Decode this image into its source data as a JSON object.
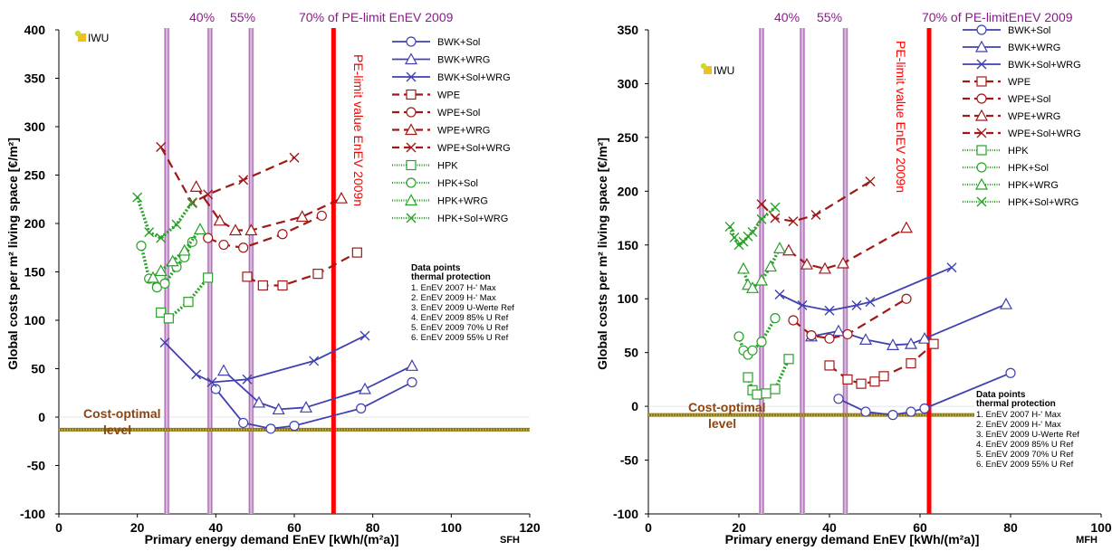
{
  "legend_entries": [
    "BWK+Sol",
    "BWK+WRG",
    "BWK+Sol+WRG",
    "WPE",
    "WPE+Sol",
    "WPE+WRG",
    "WPE+Sol+WRG",
    "HPK",
    "HPK+Sol",
    "HPK+WRG",
    "HPK+Sol+WRG"
  ],
  "chart_data": [
    {
      "type": "line",
      "xlabel": "Primary energy demand EnEV [kWh/(m²a)]",
      "ylabel": "Global costs per m² living space [€/m²]",
      "xlim": [
        0,
        120
      ],
      "ylim": [
        -100,
        400
      ],
      "xticks": [
        0,
        20,
        40,
        60,
        80,
        100,
        120
      ],
      "yticks": [
        -100,
        -50,
        0,
        50,
        100,
        150,
        200,
        250,
        300,
        350,
        400
      ],
      "grid": "off",
      "legend": "right",
      "top_labels": [
        "40%",
        "55%",
        "70% of PE-limit EnEV 2009"
      ],
      "limit_label": "PE-limit value EnEV 2009n",
      "cost_optimal_label": [
        "Cost-optimal",
        "level"
      ],
      "corner_label": "SFH",
      "logo_text": "IWU",
      "datapoints_title": [
        "Data points",
        "thermal protection"
      ],
      "datapoints_items": [
        "1. EnEV 2007 H-' Max",
        "2. EnEV 2009 H-' Max",
        "3. EnEV 2009 U-Werte Ref",
        "4. EnEV 2009 85% U Ref",
        "5. EnEV 2009 70% U Ref",
        "6. EnEV 2009 55% U Ref"
      ],
      "vlines_purple": [
        27.5,
        38.5,
        49
      ],
      "vline_red": 70,
      "cost_optimal_y": -13,
      "series": [
        {
          "name": "BWK+Sol",
          "x": [
            40,
            47,
            54,
            60,
            77,
            90
          ],
          "y": [
            29,
            -6,
            -12,
            -9,
            9,
            36
          ]
        },
        {
          "name": "BWK+WRG",
          "x": [
            42,
            51,
            56,
            63,
            78,
            90
          ],
          "y": [
            48,
            15,
            8,
            10,
            29,
            53
          ]
        },
        {
          "name": "BWK+Sol+WRG",
          "x": [
            27,
            35,
            39,
            48,
            65,
            78
          ],
          "y": [
            77,
            44,
            36,
            39,
            58,
            84
          ]
        },
        {
          "name": "WPE",
          "x": [
            48,
            52,
            57,
            66,
            76
          ],
          "y": [
            145,
            136,
            136,
            148,
            170
          ]
        },
        {
          "name": "WPE+Sol",
          "x": [
            38,
            42,
            47,
            57,
            67
          ],
          "y": [
            185,
            178,
            175,
            189,
            208
          ]
        },
        {
          "name": "WPE+WRG",
          "x": [
            35,
            41,
            45,
            49,
            62,
            72
          ],
          "y": [
            238,
            203,
            193,
            193,
            207,
            226
          ]
        },
        {
          "name": "WPE+Sol+WRG",
          "x": [
            26,
            34,
            38,
            47,
            60
          ],
          "y": [
            279,
            221,
            230,
            245,
            268
          ]
        },
        {
          "name": "HPK",
          "x": [
            26,
            28,
            33,
            38
          ],
          "y": [
            108,
            102,
            119,
            144
          ]
        },
        {
          "name": "HPK+Sol",
          "x": [
            21,
            23,
            25,
            27,
            30,
            32,
            34
          ],
          "y": [
            177,
            143,
            134,
            138,
            155,
            165,
            181
          ]
        },
        {
          "name": "HPK+WRG",
          "x": [
            24,
            26,
            29,
            32,
            36
          ],
          "y": [
            144,
            151,
            161,
            172,
            194
          ]
        },
        {
          "name": "HPK+Sol+WRG",
          "x": [
            20,
            23,
            26,
            30,
            34
          ],
          "y": [
            227,
            191,
            185,
            199,
            222
          ]
        }
      ]
    },
    {
      "type": "line",
      "xlabel": "Primary energy demand EnEV [kWh/(m²a)]",
      "ylabel": "Global costs per m² living space [€/m²]",
      "xlim": [
        0,
        100
      ],
      "ylim": [
        -100,
        350
      ],
      "xticks": [
        0,
        20,
        40,
        60,
        80,
        100
      ],
      "yticks": [
        -100,
        -50,
        0,
        50,
        100,
        150,
        200,
        250,
        300,
        350
      ],
      "grid": "off",
      "legend": "right",
      "top_labels": [
        "40%",
        "55%",
        "70% of PE-limitEnEV 2009"
      ],
      "limit_label": "PE-limit value EnEV 2009n",
      "cost_optimal_label": [
        "Cost-optimal",
        "level"
      ],
      "corner_label": "MFH",
      "logo_text": "IWU",
      "datapoints_title": [
        "Data points",
        "thermal protection"
      ],
      "datapoints_items": [
        "1. EnEV 2007 H-' Max",
        "2. EnEV 2009 H-' Max",
        "3. EnEV 2009 U-Werte Ref",
        "4. EnEV 2009 85% U Ref",
        "5. EnEV 2009 70% U Ref",
        "6. EnEV 2009 55% U Ref"
      ],
      "vlines_purple": [
        25,
        34,
        43.5
      ],
      "vline_red": 62,
      "cost_optimal_y": -8,
      "series": [
        {
          "name": "BWK+Sol",
          "x": [
            42,
            48,
            54,
            58,
            61,
            80
          ],
          "y": [
            7,
            -5,
            -8,
            -5,
            -2,
            31
          ]
        },
        {
          "name": "BWK+WRG",
          "x": [
            36,
            42,
            48,
            54,
            58,
            61,
            79
          ],
          "y": [
            65,
            70,
            62,
            57,
            58,
            63,
            95
          ]
        },
        {
          "name": "BWK+Sol+WRG",
          "x": [
            29,
            34,
            40,
            46,
            49,
            67
          ],
          "y": [
            104,
            94,
            89,
            94,
            97,
            129
          ]
        },
        {
          "name": "WPE",
          "x": [
            40,
            44,
            47,
            50,
            52,
            58,
            63
          ],
          "y": [
            38,
            25,
            21,
            23,
            28,
            40,
            58
          ]
        },
        {
          "name": "WPE+Sol",
          "x": [
            32,
            36,
            40,
            44,
            57
          ],
          "y": [
            80,
            66,
            63,
            67,
            100
          ]
        },
        {
          "name": "WPE+WRG",
          "x": [
            31,
            35,
            39,
            43,
            57
          ],
          "y": [
            145,
            132,
            128,
            133,
            166
          ]
        },
        {
          "name": "WPE+Sol+WRG",
          "x": [
            25,
            28,
            32,
            37,
            49
          ],
          "y": [
            188,
            175,
            172,
            178,
            209
          ]
        },
        {
          "name": "HPK",
          "x": [
            22,
            23,
            24,
            26,
            28,
            31
          ],
          "y": [
            27,
            15,
            11,
            12,
            16,
            44
          ]
        },
        {
          "name": "HPK+Sol",
          "x": [
            20,
            21,
            22,
            23,
            25,
            28
          ],
          "y": [
            65,
            52,
            48,
            52,
            60,
            82
          ]
        },
        {
          "name": "HPK+WRG",
          "x": [
            21,
            22,
            23,
            25,
            27,
            29
          ],
          "y": [
            128,
            113,
            110,
            117,
            130,
            147
          ]
        },
        {
          "name": "HPK+Sol+WRG",
          "x": [
            18,
            19,
            20,
            21,
            22,
            23,
            25,
            28
          ],
          "y": [
            167,
            157,
            150,
            153,
            158,
            162,
            174,
            185
          ]
        }
      ]
    }
  ]
}
